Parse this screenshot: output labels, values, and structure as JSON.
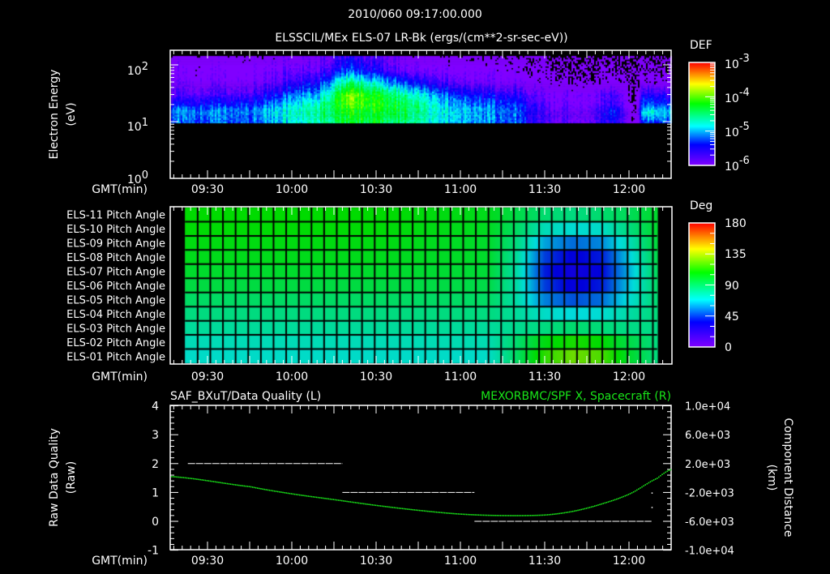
{
  "header": {
    "timestamp": "2010/060 09:17:00.000",
    "title": "ELSSCIL/MEx ELS-07 LR-Bk  (ergs/(cm**2-sr-sec-eV))"
  },
  "time_axis": {
    "label": "GMT(min)",
    "range": [
      "09:17",
      "12:15"
    ],
    "ticks": [
      "09:30",
      "10:00",
      "10:30",
      "11:00",
      "11:30",
      "12:00"
    ]
  },
  "colormap": [
    "#8000ff",
    "#0000ff",
    "#00ffff",
    "#00ff00",
    "#ffff00",
    "#ff0000"
  ],
  "colormap_positions": [
    0,
    0.2,
    0.38,
    0.6,
    0.79,
    1
  ],
  "chart_data": [
    {
      "type": "heatmap",
      "name": "energy-spectrogram",
      "ylabel": "Electron Energy",
      "ylabel_units": "(eV)",
      "yscale": "log",
      "ylim": [
        1,
        180
      ],
      "y_ticks": [
        {
          "base": "10",
          "exp": "2"
        },
        {
          "base": "10",
          "exp": "1"
        },
        {
          "base": "10",
          "exp": "0"
        }
      ],
      "colorbar": {
        "title": "DEF",
        "scale": "log",
        "range": [
          -6,
          -3
        ],
        "ticks": [
          {
            "base": "10",
            "exp": "-3"
          },
          {
            "base": "10",
            "exp": "-4"
          },
          {
            "base": "10",
            "exp": "-5"
          },
          {
            "base": "10",
            "exp": "-6"
          }
        ]
      },
      "energy_range_eV": [
        9.5,
        143
      ],
      "energies_eV": [
        10,
        15,
        20,
        30,
        50,
        80,
        140
      ],
      "times": [
        "09:17",
        "09:45",
        "10:10",
        "10:20",
        "10:40",
        "11:00",
        "11:20",
        "11:30",
        "11:45",
        "11:55",
        "12:02",
        "12:05",
        "12:15"
      ],
      "log10_def": [
        [
          -5.2,
          -5.2,
          -4.6,
          -4.3,
          -4.5,
          -5.0,
          -5.2,
          -5.8,
          -5.9,
          -5.5,
          -6.5,
          -5.3,
          -5.2
        ],
        [
          -5.1,
          -5.1,
          -4.5,
          -4.2,
          -4.4,
          -5.0,
          -5.2,
          -5.8,
          -5.9,
          -5.3,
          -6.5,
          -4.8,
          -4.9
        ],
        [
          -5.4,
          -5.3,
          -4.6,
          -4.0,
          -4.4,
          -5.1,
          -5.3,
          -5.9,
          -6.0,
          -5.6,
          -6.5,
          -5.2,
          -5.3
        ],
        [
          -5.8,
          -5.7,
          -4.9,
          -3.9,
          -4.6,
          -5.4,
          -5.6,
          -6.0,
          -6.0,
          -5.7,
          -6.5,
          -5.5,
          -5.6
        ],
        [
          -6.0,
          -6.0,
          -5.4,
          -4.5,
          -5.3,
          -5.9,
          -6.0,
          -6.2,
          -6.3,
          -6.2,
          -6.5,
          -6.2,
          -6.2
        ],
        [
          -6.1,
          -6.1,
          -5.8,
          -5.2,
          -5.9,
          -6.1,
          -6.2,
          -6.4,
          -6.5,
          -6.4,
          -6.6,
          -6.4,
          -6.4
        ],
        [
          -6.2,
          -6.2,
          -6.0,
          -5.6,
          -6.1,
          -6.3,
          -6.3,
          -6.5,
          -6.6,
          -6.6,
          -6.7,
          -6.5,
          -6.5
        ]
      ]
    },
    {
      "type": "heatmap",
      "name": "pitch-angle",
      "rows": [
        "ELS-11 Pitch Angle",
        "ELS-10 Pitch Angle",
        "ELS-09 Pitch Angle",
        "ELS-08 Pitch Angle",
        "ELS-07 Pitch Angle",
        "ELS-06 Pitch Angle",
        "ELS-05 Pitch Angle",
        "ELS-04 Pitch Angle",
        "ELS-03 Pitch Angle",
        "ELS-02 Pitch Angle",
        "ELS-01 Pitch Angle"
      ],
      "colorbar": {
        "title": "Deg",
        "range": [
          0,
          180
        ],
        "ticks": [
          "180",
          "135",
          "90",
          "45",
          "0"
        ]
      },
      "data_time_range": [
        "09:22",
        "12:10"
      ],
      "times": [
        "09:22",
        "10:30",
        "11:10",
        "11:20",
        "11:30",
        "11:40",
        "11:50",
        "12:00",
        "12:10"
      ],
      "values_deg": [
        [
          108,
          108,
          103,
          95,
          88,
          85,
          88,
          92,
          100
        ],
        [
          107,
          107,
          102,
          90,
          75,
          70,
          72,
          85,
          100
        ],
        [
          105,
          105,
          100,
          85,
          60,
          52,
          56,
          75,
          98
        ],
        [
          103,
          103,
          100,
          80,
          45,
          35,
          40,
          66,
          95
        ],
        [
          100,
          100,
          98,
          78,
          40,
          30,
          36,
          62,
          92
        ],
        [
          96,
          96,
          95,
          78,
          45,
          34,
          40,
          65,
          90
        ],
        [
          90,
          90,
          90,
          78,
          55,
          48,
          52,
          70,
          88
        ],
        [
          85,
          85,
          85,
          80,
          72,
          68,
          70,
          78,
          86
        ],
        [
          80,
          80,
          80,
          82,
          85,
          88,
          86,
          84,
          84
        ],
        [
          75,
          75,
          76,
          88,
          105,
          112,
          108,
          95,
          85
        ],
        [
          72,
          72,
          72,
          90,
          115,
          125,
          120,
          100,
          85
        ]
      ]
    },
    {
      "type": "line",
      "name": "quality-and-position",
      "title_left": "SAF_BXuT/Data Quality (L)",
      "title_right": "MEXORBMC/SPF X, Spacecraft (R)",
      "ylabel_left": "Raw Data Quality",
      "ylabel_left_units": "(Raw)",
      "ylabel_right": "Component Distance",
      "ylabel_right_units": "(km)",
      "ylim_left": [
        -1,
        4
      ],
      "yticks_left": [
        "4",
        "3",
        "2",
        "1",
        "0",
        "-1"
      ],
      "ylim_right": [
        -10000,
        10000
      ],
      "yticks_right": [
        "1.0e+04",
        "6.0e+03",
        "2.0e+03",
        "-2.0e+03",
        "-6.0e+03",
        "-1.0e+04"
      ],
      "series": [
        {
          "name": "Data Quality",
          "axis": "left",
          "color": "#ffffff",
          "style": "dashed",
          "segments": [
            {
              "from": "09:23",
              "to": "10:18",
              "value": 2
            },
            {
              "from": "10:18",
              "to": "11:05",
              "value": 1
            },
            {
              "from": "11:05",
              "to": "12:08",
              "value": 0
            }
          ],
          "points": [
            {
              "t": "12:08",
              "value": 1
            },
            {
              "t": "12:08",
              "value": 0.5
            }
          ]
        },
        {
          "name": "SPF X, Spacecraft",
          "axis": "right",
          "color": "#19e619",
          "style": "dotted",
          "x": [
            "09:17",
            "09:45",
            "10:00",
            "10:15",
            "10:30",
            "10:45",
            "11:00",
            "11:15",
            "11:30",
            "11:40",
            "11:50",
            "12:00",
            "12:10",
            "12:15"
          ],
          "y_km": [
            200,
            -1200,
            -2200,
            -3000,
            -3800,
            -4480,
            -5000,
            -5200,
            -5120,
            -4600,
            -3600,
            -2200,
            0,
            1200
          ]
        }
      ]
    }
  ]
}
